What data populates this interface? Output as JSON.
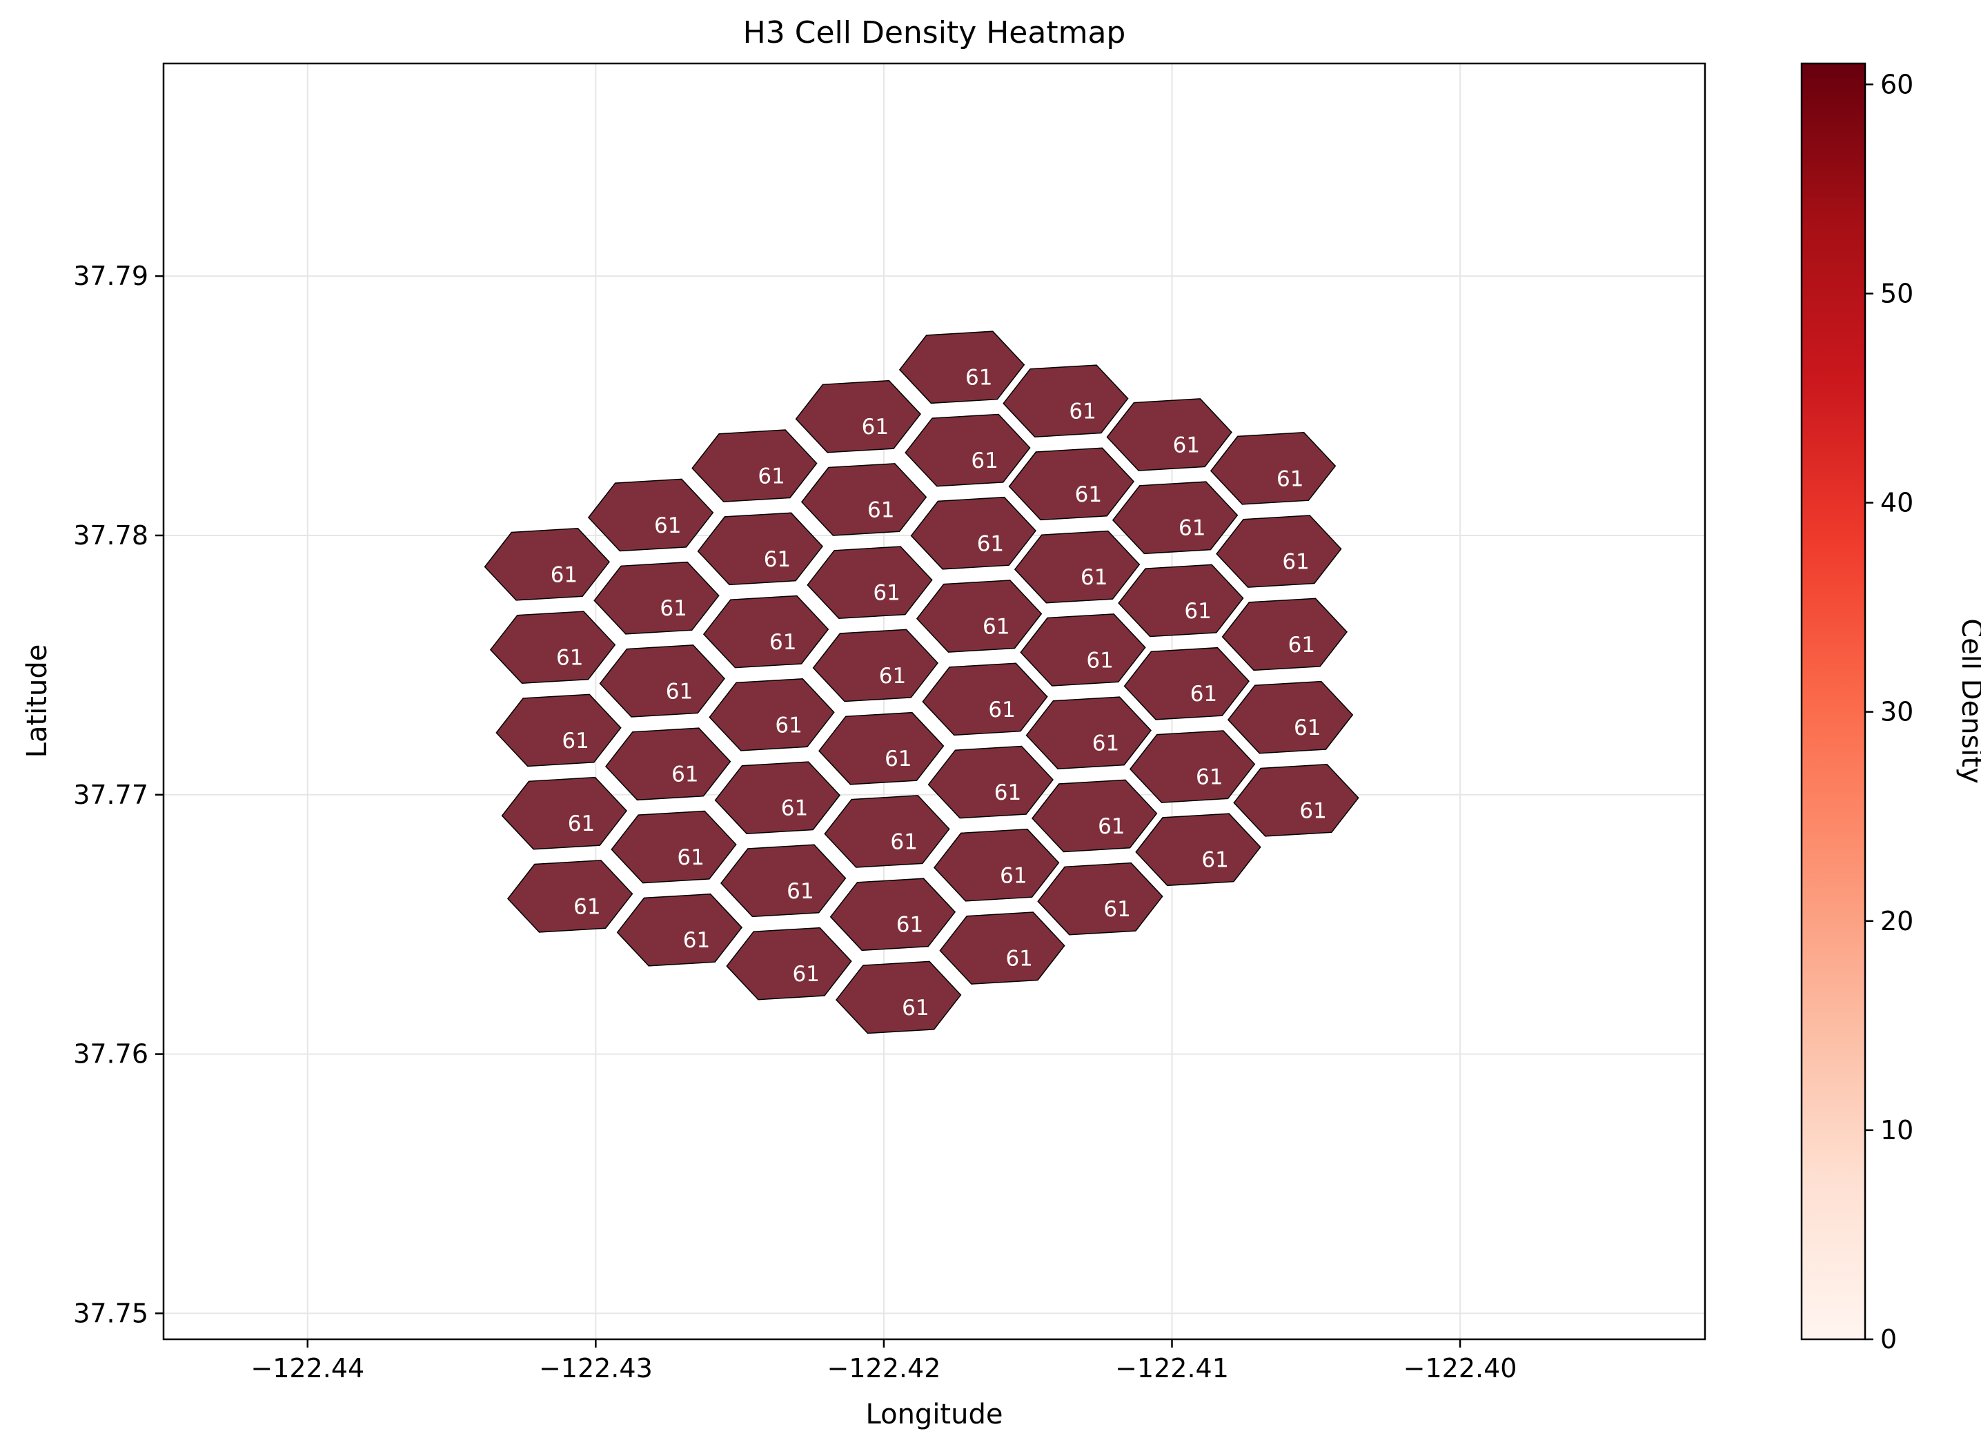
{
  "chart_data": {
    "type": "heatmap",
    "title": "H3 Cell Density Heatmap",
    "xlabel": "Longitude",
    "ylabel": "Latitude",
    "xlim": [
      -122.445,
      -122.3915
    ],
    "ylim": [
      37.749,
      37.7982
    ],
    "x_ticks": [
      -122.44,
      -122.43,
      -122.42,
      -122.41,
      -122.4
    ],
    "x_tick_labels": [
      "−122.44",
      "−122.43",
      "−122.42",
      "−122.41",
      "−122.40"
    ],
    "y_ticks": [
      37.75,
      37.76,
      37.77,
      37.78,
      37.79
    ],
    "y_tick_labels": [
      "37.75",
      "37.76",
      "37.77",
      "37.78",
      "37.79"
    ],
    "grid": true,
    "colorbar": {
      "label": "Cell Density",
      "min": 0,
      "max": 61,
      "colormap": "Reds",
      "ticks": [
        0,
        10,
        20,
        30,
        40,
        50,
        60
      ],
      "tick_labels": [
        "0",
        "10",
        "20",
        "30",
        "40",
        "50",
        "60"
      ]
    },
    "cell_color": "#7f2f3b",
    "cell_edge_color": "#000000",
    "label_color": "#ffffff",
    "cells": [
      {
        "lon": -122.4311,
        "lat": 37.7785,
        "value": 61
      },
      {
        "lon": -122.4309,
        "lat": 37.7753,
        "value": 61
      },
      {
        "lon": -122.4307,
        "lat": 37.7721,
        "value": 61
      },
      {
        "lon": -122.4305,
        "lat": 37.7689,
        "value": 61
      },
      {
        "lon": -122.4303,
        "lat": 37.7657,
        "value": 61
      },
      {
        "lon": -122.4275,
        "lat": 37.7804,
        "value": 61
      },
      {
        "lon": -122.4273,
        "lat": 37.7772,
        "value": 61
      },
      {
        "lon": -122.4271,
        "lat": 37.774,
        "value": 61
      },
      {
        "lon": -122.4269,
        "lat": 37.7708,
        "value": 61
      },
      {
        "lon": -122.4267,
        "lat": 37.7676,
        "value": 61
      },
      {
        "lon": -122.4265,
        "lat": 37.7644,
        "value": 61
      },
      {
        "lon": -122.4239,
        "lat": 37.7823,
        "value": 61
      },
      {
        "lon": -122.4237,
        "lat": 37.7791,
        "value": 61
      },
      {
        "lon": -122.4235,
        "lat": 37.7759,
        "value": 61
      },
      {
        "lon": -122.4233,
        "lat": 37.7727,
        "value": 61
      },
      {
        "lon": -122.4231,
        "lat": 37.7695,
        "value": 61
      },
      {
        "lon": -122.4229,
        "lat": 37.7663,
        "value": 61
      },
      {
        "lon": -122.4227,
        "lat": 37.7631,
        "value": 61
      },
      {
        "lon": -122.4203,
        "lat": 37.7842,
        "value": 61
      },
      {
        "lon": -122.4201,
        "lat": 37.781,
        "value": 61
      },
      {
        "lon": -122.4199,
        "lat": 37.7778,
        "value": 61
      },
      {
        "lon": -122.4197,
        "lat": 37.7746,
        "value": 61
      },
      {
        "lon": -122.4195,
        "lat": 37.7714,
        "value": 61
      },
      {
        "lon": -122.4193,
        "lat": 37.7682,
        "value": 61
      },
      {
        "lon": -122.4191,
        "lat": 37.765,
        "value": 61
      },
      {
        "lon": -122.4189,
        "lat": 37.7618,
        "value": 61
      },
      {
        "lon": -122.4167,
        "lat": 37.7861,
        "value": 61
      },
      {
        "lon": -122.4165,
        "lat": 37.7829,
        "value": 61
      },
      {
        "lon": -122.4163,
        "lat": 37.7797,
        "value": 61
      },
      {
        "lon": -122.4161,
        "lat": 37.7765,
        "value": 61
      },
      {
        "lon": -122.4159,
        "lat": 37.7733,
        "value": 61
      },
      {
        "lon": -122.4157,
        "lat": 37.7701,
        "value": 61
      },
      {
        "lon": -122.4155,
        "lat": 37.7669,
        "value": 61
      },
      {
        "lon": -122.4153,
        "lat": 37.7637,
        "value": 61
      },
      {
        "lon": -122.4131,
        "lat": 37.7848,
        "value": 61
      },
      {
        "lon": -122.4129,
        "lat": 37.7816,
        "value": 61
      },
      {
        "lon": -122.4127,
        "lat": 37.7784,
        "value": 61
      },
      {
        "lon": -122.4125,
        "lat": 37.7752,
        "value": 61
      },
      {
        "lon": -122.4123,
        "lat": 37.772,
        "value": 61
      },
      {
        "lon": -122.4121,
        "lat": 37.7688,
        "value": 61
      },
      {
        "lon": -122.4119,
        "lat": 37.7656,
        "value": 61
      },
      {
        "lon": -122.4095,
        "lat": 37.7835,
        "value": 61
      },
      {
        "lon": -122.4093,
        "lat": 37.7803,
        "value": 61
      },
      {
        "lon": -122.4091,
        "lat": 37.7771,
        "value": 61
      },
      {
        "lon": -122.4089,
        "lat": 37.7739,
        "value": 61
      },
      {
        "lon": -122.4087,
        "lat": 37.7707,
        "value": 61
      },
      {
        "lon": -122.4085,
        "lat": 37.7675,
        "value": 61
      },
      {
        "lon": -122.4059,
        "lat": 37.7822,
        "value": 61
      },
      {
        "lon": -122.4057,
        "lat": 37.779,
        "value": 61
      },
      {
        "lon": -122.4055,
        "lat": 37.7758,
        "value": 61
      },
      {
        "lon": -122.4053,
        "lat": 37.7726,
        "value": 61
      },
      {
        "lon": -122.4051,
        "lat": 37.7694,
        "value": 61
      }
    ]
  }
}
